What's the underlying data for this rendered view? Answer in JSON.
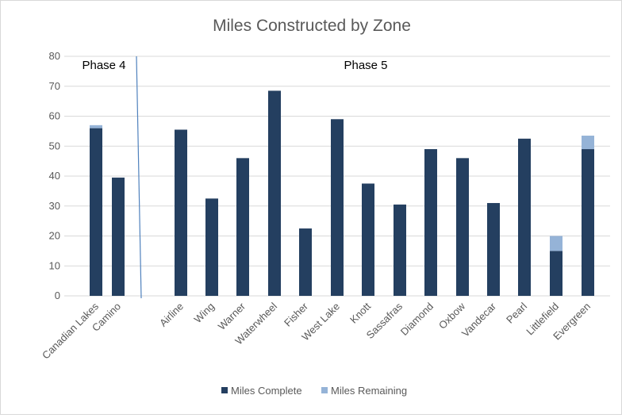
{
  "chart_data": {
    "type": "bar",
    "stacked": true,
    "title": "Miles Constructed by Zone",
    "xlabel": "",
    "ylabel": "",
    "ylim": [
      0,
      80
    ],
    "yticks": [
      0,
      10,
      20,
      30,
      40,
      50,
      60,
      70,
      80
    ],
    "grid": true,
    "legend_position": "bottom",
    "groups": [
      {
        "label": "Phase 4",
        "categories": [
          "Canadian Lakes",
          "Camino"
        ]
      },
      {
        "label": "Phase 5",
        "categories": [
          "Airline",
          "Wing",
          "Warner",
          "Waterwheel",
          "Fisher",
          "West Lake",
          "Knott",
          "Sassafras",
          "Diamond",
          "Oxbow",
          "Vandecar",
          "Pearl",
          "Littlefield",
          "Evergreen"
        ]
      }
    ],
    "categories": [
      "Canadian Lakes",
      "Camino",
      "Airline",
      "Wing",
      "Warner",
      "Waterwheel",
      "Fisher",
      "West Lake",
      "Knott",
      "Sassafras",
      "Diamond",
      "Oxbow",
      "Vandecar",
      "Pearl",
      "Littlefield",
      "Evergreen"
    ],
    "series": [
      {
        "name": "Miles Complete",
        "color": "#243f60",
        "values": [
          56,
          39.5,
          55.5,
          32.5,
          46,
          68.5,
          22.5,
          59,
          37.5,
          30.5,
          49,
          46,
          31,
          52.5,
          15,
          49
        ]
      },
      {
        "name": "Miles Remaining",
        "color": "#95b3d7",
        "values": [
          1,
          0,
          0,
          0,
          0,
          0,
          0,
          0,
          0,
          0,
          0,
          0,
          0,
          0,
          5,
          4.5
        ]
      }
    ],
    "colors": {
      "gridline": "#d9d9d9",
      "axis_text": "#595959",
      "title_text": "#595959",
      "divider": "#4f81bd"
    }
  }
}
